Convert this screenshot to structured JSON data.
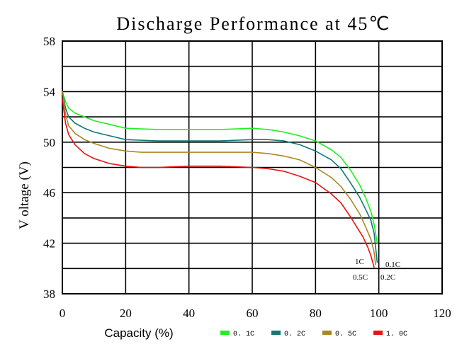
{
  "chart_data": {
    "type": "line",
    "title": "Discharge Performance at 45℃",
    "xlabel": "Capacity (%)",
    "ylabel": "V oltage (V)",
    "xlim": [
      0,
      120
    ],
    "ylim": [
      38,
      58
    ],
    "xticks": [
      0,
      20,
      40,
      60,
      80,
      100,
      120
    ],
    "yticks": [
      38,
      42,
      46,
      50,
      54,
      58
    ],
    "xtick_labels": [
      "0",
      "20",
      "40",
      "60",
      "80",
      "100",
      "120"
    ],
    "ytick_labels": [
      "38",
      "42",
      "46",
      "50",
      "54",
      "58"
    ],
    "grid": true,
    "legend_position": "bottom",
    "series": [
      {
        "name": "0. 1C",
        "color": "#22ee22",
        "x": [
          0,
          1,
          2,
          4,
          7,
          10,
          15,
          20,
          30,
          40,
          50,
          60,
          65,
          70,
          75,
          80,
          85,
          88,
          91,
          94,
          96,
          97.5,
          98.5,
          99.5
        ],
        "y": [
          54,
          53.2,
          52.7,
          52.3,
          52.0,
          51.7,
          51.4,
          51.1,
          51.0,
          51.0,
          51.0,
          51.1,
          51.0,
          50.8,
          50.5,
          50.1,
          49.4,
          48.8,
          47.8,
          46.6,
          45.5,
          44.5,
          43.5,
          42.0
        ]
      },
      {
        "name": "0. 2C",
        "color": "#117777",
        "x": [
          0,
          1,
          2,
          4,
          7,
          10,
          15,
          20,
          30,
          40,
          50,
          60,
          65,
          70,
          75,
          80,
          85,
          88,
          91,
          94,
          96,
          97.5,
          98.5,
          99.5
        ],
        "y": [
          54,
          52.7,
          52.0,
          51.5,
          51.1,
          50.8,
          50.5,
          50.2,
          50.1,
          50.1,
          50.1,
          50.2,
          50.2,
          50.1,
          49.8,
          49.3,
          48.6,
          47.9,
          46.8,
          45.6,
          44.6,
          43.8,
          42.8,
          40.5
        ]
      },
      {
        "name": "0. 5C",
        "color": "#aa8822",
        "x": [
          0,
          1,
          2,
          4,
          7,
          10,
          15,
          20,
          25,
          30,
          40,
          50,
          60,
          65,
          70,
          75,
          80,
          85,
          88,
          91,
          94,
          96,
          97.5,
          98.5,
          99
        ],
        "y": [
          54,
          52.2,
          51.3,
          50.7,
          50.2,
          49.9,
          49.5,
          49.3,
          49.2,
          49.2,
          49.2,
          49.2,
          49.2,
          49.1,
          48.9,
          48.6,
          48.0,
          47.2,
          46.5,
          45.5,
          44.3,
          43.2,
          42.3,
          41.3,
          40.3
        ]
      },
      {
        "name": "1. 0C",
        "color": "#ee1111",
        "x": [
          0,
          1,
          2,
          4,
          7,
          10,
          15,
          20,
          25,
          30,
          40,
          50,
          60,
          65,
          70,
          75,
          80,
          85,
          88,
          91,
          93,
          95,
          96.5,
          97.5,
          98.5
        ],
        "y": [
          53.4,
          51.5,
          50.6,
          49.8,
          49.1,
          48.7,
          48.3,
          48.1,
          48.0,
          48.0,
          48.1,
          48.1,
          48.0,
          47.9,
          47.7,
          47.3,
          46.8,
          45.9,
          45.2,
          44.1,
          43.3,
          42.5,
          41.7,
          41.0,
          40.1
        ]
      }
    ],
    "annotations": [
      "1C",
      "0.1C",
      "0.5C",
      "0.2C"
    ]
  }
}
